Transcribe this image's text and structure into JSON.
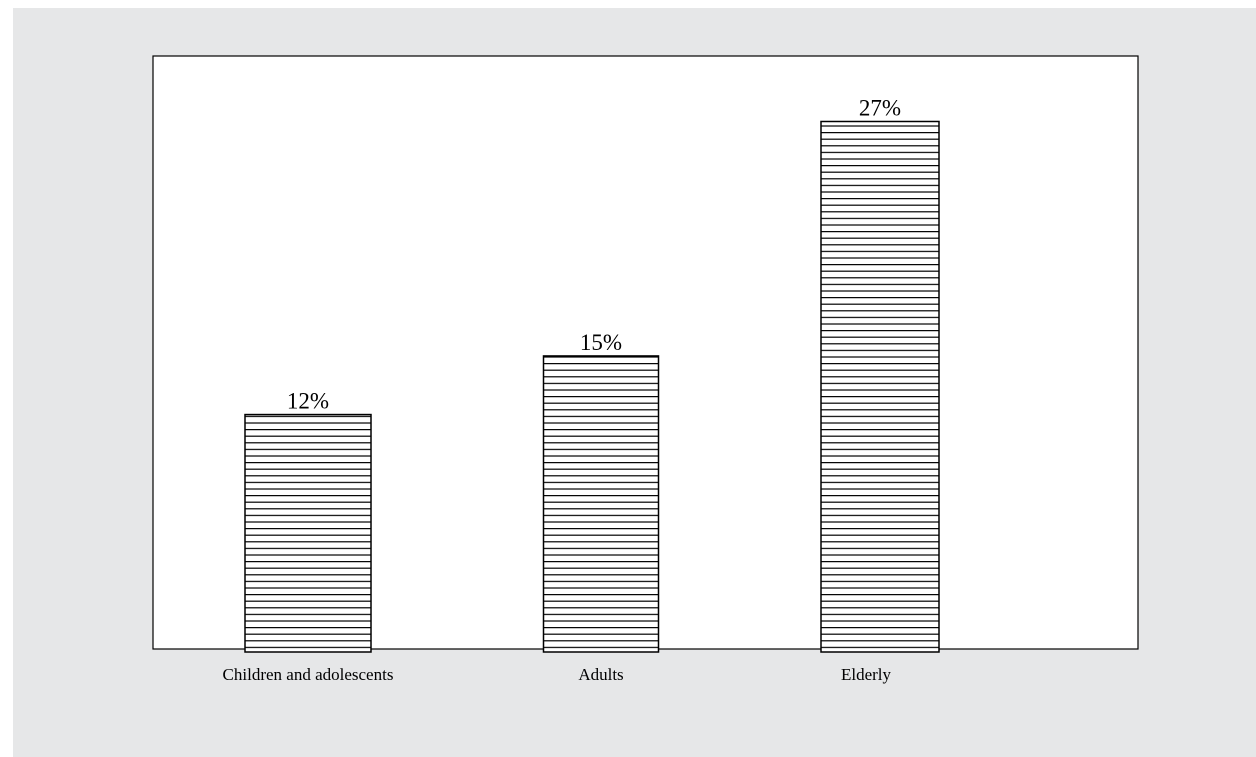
{
  "chart_data": {
    "type": "bar",
    "title": "",
    "xlabel": "",
    "ylabel": "",
    "categories": [
      "Children and adolescents",
      "Adults",
      "Elderly"
    ],
    "values": [
      12,
      15,
      27
    ],
    "data_labels": [
      "12%",
      "15%",
      "27%"
    ],
    "unit": "%",
    "ylim": [
      0,
      30
    ],
    "grid": false,
    "legend": "none",
    "colors": {
      "background": "#e6e7e8",
      "plot_area": "#ffffff",
      "bar_fill": "#ffffff",
      "bar_hatch": "#000000",
      "bar_outline": "#000000"
    },
    "bar_pattern": "horizontal-hatch"
  }
}
